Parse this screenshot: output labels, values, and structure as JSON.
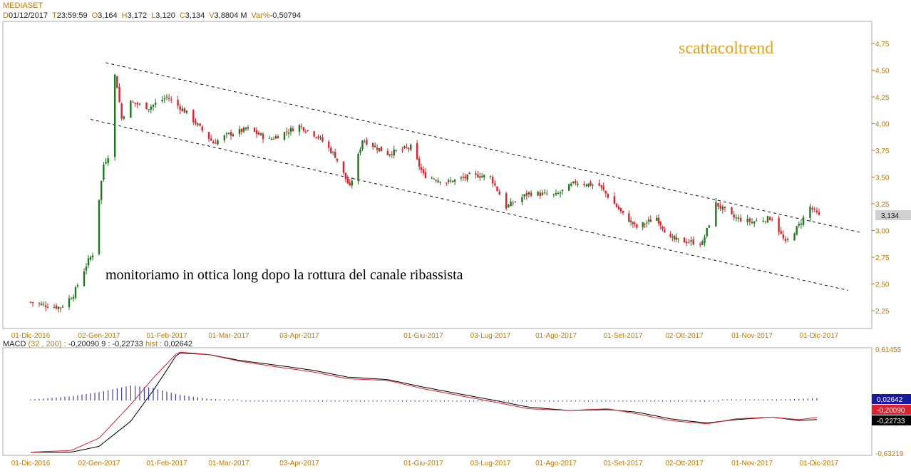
{
  "header": {
    "symbol": "MEDIASET",
    "fields": [
      {
        "key": "D",
        "value": "01/12/2017"
      },
      {
        "key": "T",
        "value": "23:59:59"
      },
      {
        "key": "O",
        "value": "3,164"
      },
      {
        "key": "H",
        "value": "3,172"
      },
      {
        "key": "L",
        "value": "3,120"
      },
      {
        "key": "C",
        "value": "3,134"
      },
      {
        "key": "V",
        "value": "3,8804 M"
      },
      {
        "key": "Var%",
        "value": "-0,50794"
      }
    ]
  },
  "annotations": {
    "brand": "scattacoltrend",
    "note": "monitoriamo in ottica long dopo la rottura del canale ribassista"
  },
  "colors": {
    "up": "#1a7a1a",
    "down": "#e0202a",
    "axis": "#c07a00",
    "macd_line": "#e0202a",
    "signal_line": "#000000",
    "histogram": "#1a1aa0",
    "last_price_bg": "#d0d0d0"
  },
  "chart_data": [
    {
      "type": "candlestick",
      "title": "MEDIASET",
      "x_labels": [
        "01-Dic-2016",
        "02-Gen-2017",
        "01-Feb-2017",
        "01-Mar-2017",
        "03-Apr-2017",
        "01-Giu-2017",
        "03-Lug-2017",
        "01-Ago-2017",
        "01-Set-2017",
        "02-Ott-2017",
        "01-Nov-2017",
        "01-Dic-2017"
      ],
      "x_label_dates": [
        "2016-12-01",
        "2017-01-02",
        "2017-02-01",
        "2017-03-01",
        "2017-04-03",
        "2017-06-01",
        "2017-07-03",
        "2017-08-01",
        "2017-09-01",
        "2017-10-02",
        "2017-11-01",
        "2017-12-01"
      ],
      "y_ticks": [
        "4,75",
        "4,50",
        "4,25",
        "4,00",
        "3,75",
        "3,50",
        "3,25",
        "3,00",
        "2,75",
        "2,50",
        "2,25"
      ],
      "y_tick_values": [
        4.75,
        4.5,
        4.25,
        4.0,
        3.75,
        3.5,
        3.25,
        3.0,
        2.75,
        2.5,
        2.25
      ],
      "ylim": [
        2.1,
        4.95
      ],
      "last_price_label": "3,134",
      "last_price": 3.134,
      "key_closes": [
        {
          "date": "2016-12-01",
          "close": 2.33
        },
        {
          "date": "2016-12-08",
          "close": 2.3
        },
        {
          "date": "2016-12-15",
          "close": 2.28
        },
        {
          "date": "2016-12-21",
          "close": 2.4
        },
        {
          "date": "2016-12-28",
          "close": 2.72
        },
        {
          "date": "2016-12-30",
          "close": 2.78
        },
        {
          "date": "2017-01-02",
          "close": 3.3
        },
        {
          "date": "2017-01-04",
          "close": 3.62
        },
        {
          "date": "2017-01-06",
          "close": 3.7
        },
        {
          "date": "2017-01-09",
          "close": 4.45
        },
        {
          "date": "2017-01-10",
          "close": 4.35
        },
        {
          "date": "2017-01-12",
          "close": 4.05
        },
        {
          "date": "2017-01-16",
          "close": 4.2
        },
        {
          "date": "2017-01-24",
          "close": 4.15
        },
        {
          "date": "2017-02-01",
          "close": 4.25
        },
        {
          "date": "2017-02-10",
          "close": 4.1
        },
        {
          "date": "2017-02-22",
          "close": 3.82
        },
        {
          "date": "2017-03-01",
          "close": 3.9
        },
        {
          "date": "2017-03-10",
          "close": 3.95
        },
        {
          "date": "2017-03-20",
          "close": 3.85
        },
        {
          "date": "2017-04-03",
          "close": 3.98
        },
        {
          "date": "2017-04-12",
          "close": 3.88
        },
        {
          "date": "2017-04-20",
          "close": 3.7
        },
        {
          "date": "2017-04-27",
          "close": 3.4
        },
        {
          "date": "2017-05-03",
          "close": 3.85
        },
        {
          "date": "2017-05-15",
          "close": 3.72
        },
        {
          "date": "2017-05-26",
          "close": 3.78
        },
        {
          "date": "2017-06-01",
          "close": 3.52
        },
        {
          "date": "2017-06-12",
          "close": 3.45
        },
        {
          "date": "2017-06-26",
          "close": 3.52
        },
        {
          "date": "2017-07-03",
          "close": 3.5
        },
        {
          "date": "2017-07-10",
          "close": 3.22
        },
        {
          "date": "2017-07-20",
          "close": 3.35
        },
        {
          "date": "2017-08-01",
          "close": 3.33
        },
        {
          "date": "2017-08-10",
          "close": 3.45
        },
        {
          "date": "2017-08-21",
          "close": 3.42
        },
        {
          "date": "2017-09-01",
          "close": 3.15
        },
        {
          "date": "2017-09-08",
          "close": 3.03
        },
        {
          "date": "2017-09-18",
          "close": 3.12
        },
        {
          "date": "2017-09-25",
          "close": 2.92
        },
        {
          "date": "2017-10-02",
          "close": 2.9
        },
        {
          "date": "2017-10-10",
          "close": 2.88
        },
        {
          "date": "2017-10-16",
          "close": 3.25
        },
        {
          "date": "2017-10-24",
          "close": 3.12
        },
        {
          "date": "2017-11-01",
          "close": 3.08
        },
        {
          "date": "2017-11-10",
          "close": 3.12
        },
        {
          "date": "2017-11-16",
          "close": 2.88
        },
        {
          "date": "2017-11-22",
          "close": 3.05
        },
        {
          "date": "2017-11-27",
          "close": 3.22
        },
        {
          "date": "2017-12-01",
          "close": 3.134
        }
      ],
      "trendlines": [
        {
          "style": "dashed",
          "from": {
            "date": "2017-01-05",
            "price": 4.57
          },
          "to": {
            "date": "2017-12-20",
            "price": 2.98
          }
        },
        {
          "style": "dashed",
          "from": {
            "date": "2016-12-29",
            "price": 4.04
          },
          "to": {
            "date": "2017-12-14",
            "price": 2.44
          }
        }
      ]
    },
    {
      "type": "line",
      "title": "MACD",
      "legend": {
        "name": "MACD",
        "params": "(32 , 200)",
        "macd": "-0,20090",
        "signal_period": "9",
        "signal": "-0,22733",
        "hist_label": "hist",
        "hist": "0,02642"
      },
      "x_labels": [
        "01-Dic-2016",
        "02-Gen-2017",
        "01-Feb-2017",
        "01-Mar-2017",
        "03-Apr-2017",
        "01-Giu-2017",
        "03-Lug-2017",
        "01-Ago-2017",
        "01-Set-2017",
        "02-Ott-2017",
        "01-Nov-2017",
        "01-Dic-2017"
      ],
      "x_label_dates": [
        "2016-12-01",
        "2017-01-02",
        "2017-02-01",
        "2017-03-01",
        "2017-04-03",
        "2017-06-01",
        "2017-07-03",
        "2017-08-01",
        "2017-09-01",
        "2017-10-02",
        "2017-11-01",
        "2017-12-01"
      ],
      "y_ticks": [
        "0,61455",
        "-0,63219"
      ],
      "ylim": [
        -0.63219,
        0.61455
      ],
      "last_value_labels": [
        {
          "label": "0,02642",
          "color": "#1a1aa0"
        },
        {
          "label": "-0,20090",
          "color": "#e0202a"
        },
        {
          "label": "-0,22733",
          "color": "#000000"
        }
      ],
      "series": [
        {
          "name": "MACD",
          "points": [
            [
              "2016-12-01",
              -0.62
            ],
            [
              "2016-12-20",
              -0.6
            ],
            [
              "2017-01-02",
              -0.45
            ],
            [
              "2017-01-16",
              -0.05
            ],
            [
              "2017-01-26",
              0.27
            ],
            [
              "2017-02-06",
              0.58
            ],
            [
              "2017-02-20",
              0.55
            ],
            [
              "2017-03-06",
              0.47
            ],
            [
              "2017-03-24",
              0.4
            ],
            [
              "2017-04-10",
              0.34
            ],
            [
              "2017-04-26",
              0.26
            ],
            [
              "2017-05-15",
              0.24
            ],
            [
              "2017-06-01",
              0.14
            ],
            [
              "2017-06-20",
              0.05
            ],
            [
              "2017-07-03",
              -0.01
            ],
            [
              "2017-07-20",
              -0.1
            ],
            [
              "2017-08-07",
              -0.12
            ],
            [
              "2017-08-25",
              -0.1
            ],
            [
              "2017-09-08",
              -0.16
            ],
            [
              "2017-09-25",
              -0.24
            ],
            [
              "2017-10-12",
              -0.28
            ],
            [
              "2017-10-25",
              -0.22
            ],
            [
              "2017-11-10",
              -0.2
            ],
            [
              "2017-11-22",
              -0.23
            ],
            [
              "2017-12-01",
              -0.2009
            ]
          ]
        },
        {
          "name": "Signal",
          "points": [
            [
              "2016-12-01",
              -0.62
            ],
            [
              "2016-12-20",
              -0.62
            ],
            [
              "2017-01-02",
              -0.55
            ],
            [
              "2017-01-16",
              -0.25
            ],
            [
              "2017-01-26",
              0.12
            ],
            [
              "2017-02-06",
              0.57
            ],
            [
              "2017-02-20",
              0.55
            ],
            [
              "2017-03-06",
              0.48
            ],
            [
              "2017-03-24",
              0.42
            ],
            [
              "2017-04-10",
              0.36
            ],
            [
              "2017-04-26",
              0.28
            ],
            [
              "2017-05-15",
              0.25
            ],
            [
              "2017-06-01",
              0.16
            ],
            [
              "2017-06-20",
              0.07
            ],
            [
              "2017-07-03",
              0.01
            ],
            [
              "2017-07-20",
              -0.08
            ],
            [
              "2017-08-07",
              -0.12
            ],
            [
              "2017-08-25",
              -0.11
            ],
            [
              "2017-09-08",
              -0.14
            ],
            [
              "2017-09-25",
              -0.22
            ],
            [
              "2017-10-12",
              -0.27
            ],
            [
              "2017-10-25",
              -0.23
            ],
            [
              "2017-11-10",
              -0.2
            ],
            [
              "2017-11-22",
              -0.24
            ],
            [
              "2017-12-01",
              -0.22733
            ]
          ]
        },
        {
          "name": "Histogram",
          "points": [
            [
              "2016-12-01",
              0.01
            ],
            [
              "2016-12-20",
              0.05
            ],
            [
              "2017-01-02",
              0.1
            ],
            [
              "2017-01-16",
              0.18
            ],
            [
              "2017-01-26",
              0.15
            ],
            [
              "2017-02-06",
              0.07
            ],
            [
              "2017-02-20",
              0.02
            ],
            [
              "2017-03-06",
              0.0
            ],
            [
              "2017-04-10",
              -0.01
            ],
            [
              "2017-06-01",
              -0.01
            ],
            [
              "2017-07-03",
              -0.01
            ],
            [
              "2017-08-07",
              0.0
            ],
            [
              "2017-09-08",
              -0.01
            ],
            [
              "2017-10-12",
              -0.01
            ],
            [
              "2017-10-25",
              0.01
            ],
            [
              "2017-11-10",
              0.01
            ],
            [
              "2017-12-01",
              0.02642
            ]
          ]
        }
      ]
    }
  ]
}
